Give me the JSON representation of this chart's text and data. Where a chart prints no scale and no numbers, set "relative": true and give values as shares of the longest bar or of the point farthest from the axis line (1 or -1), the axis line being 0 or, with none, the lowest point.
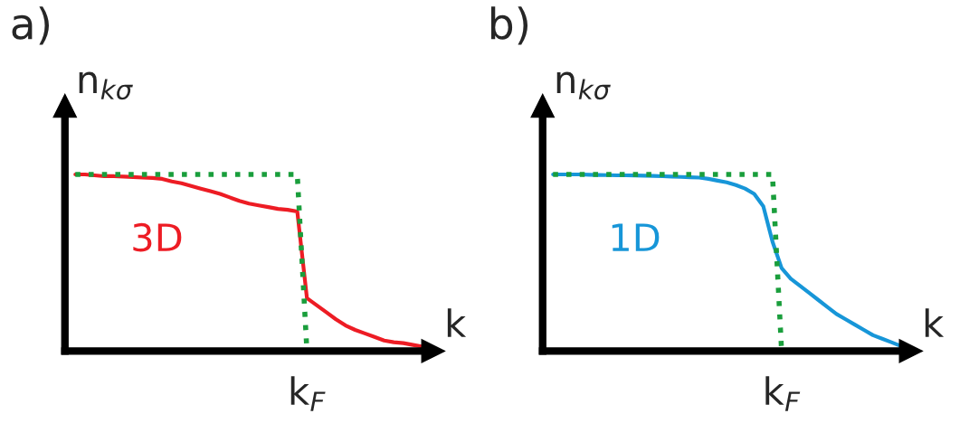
{
  "chart_data": [
    {
      "type": "line",
      "title": "a)",
      "xlabel": "k",
      "ylabel": "n$_{kσ}$",
      "relative": true,
      "annotations": [
        "k$_{F}$"
      ],
      "categories": [
        null,
        null,
        null,
        null,
        null,
        null,
        null,
        null,
        null,
        null,
        null,
        null,
        null,
        null,
        null,
        null,
        null,
        null,
        null,
        null,
        null,
        null,
        null,
        null,
        null,
        null,
        null,
        null,
        null,
        null,
        null,
        null,
        null,
        null,
        null,
        null,
        null,
        null,
        null,
        null,
        null
      ],
      "series": [
        {
          "name": "3D",
          "color": "#ed1c24",
          "line_style": "solid",
          "values": [
            null,
            1.0,
            1.0,
            0.995,
            0.99,
            0.99,
            0.988,
            0.985,
            0.982,
            0.98,
            0.975,
            0.96,
            0.95,
            0.935,
            0.92,
            0.905,
            0.89,
            0.87,
            0.85,
            0.835,
            0.825,
            0.815,
            0.805,
            0.8,
            0.79,
            0.3,
            0.26,
            0.22,
            0.18,
            0.145,
            0.12,
            0.1,
            0.08,
            0.06,
            0.05,
            0.045,
            0.035,
            0.025,
            null,
            null,
            null
          ]
        },
        {
          "color": "#1a9e3c",
          "line_style": "dotted",
          "values": [
            null,
            1.0,
            1.0,
            1.0,
            1.0,
            1.0,
            1.0,
            1.0,
            1.0,
            1.0,
            1.0,
            1.0,
            1.0,
            1.0,
            1.0,
            1.0,
            1.0,
            1.0,
            1.0,
            1.0,
            1.0,
            1.0,
            1.0,
            1.0,
            1.0,
            0.0,
            null,
            null,
            null,
            null,
            null,
            null,
            null,
            null,
            null,
            null,
            null,
            null,
            null,
            null,
            null
          ]
        }
      ]
    },
    {
      "type": "line",
      "title": "b)",
      "xlabel": "k",
      "ylabel": "n$_{kσ}$",
      "relative": true,
      "annotations": [
        "k$_{F}$"
      ],
      "categories": [
        null,
        null,
        null,
        null,
        null,
        null,
        null,
        null,
        null,
        null,
        null,
        null,
        null,
        null,
        null,
        null,
        null,
        null,
        null,
        null,
        null,
        null,
        null,
        null,
        null,
        null,
        null,
        null,
        null,
        null,
        null,
        null,
        null,
        null,
        null,
        null,
        null,
        null,
        null,
        null,
        null
      ],
      "series": [
        {
          "name": "1D",
          "color": "#1796d8",
          "line_style": "solid",
          "values": [
            1.0,
            1.0,
            1.0,
            1.0,
            0.998,
            0.997,
            0.996,
            0.995,
            0.995,
            0.994,
            0.993,
            0.992,
            0.99,
            0.988,
            0.986,
            0.984,
            0.982,
            0.975,
            0.965,
            0.955,
            0.94,
            0.92,
            0.89,
            0.82,
            0.62,
            0.47,
            0.41,
            0.37,
            0.33,
            0.29,
            0.25,
            0.21,
            0.18,
            0.15,
            0.12,
            0.09,
            0.07,
            0.05,
            0.03,
            null,
            null
          ]
        },
        {
          "color": "#1a9e3c",
          "line_style": "dotted",
          "values": [
            1.0,
            1.0,
            1.0,
            1.0,
            1.0,
            1.0,
            1.0,
            1.0,
            1.0,
            1.0,
            1.0,
            1.0,
            1.0,
            1.0,
            1.0,
            1.0,
            1.0,
            1.0,
            1.0,
            1.0,
            1.0,
            1.0,
            1.0,
            1.0,
            1.0,
            0.0,
            null,
            null,
            null,
            null,
            null,
            null,
            null,
            null,
            null,
            null,
            null,
            null,
            null,
            null,
            null
          ]
        }
      ]
    }
  ]
}
